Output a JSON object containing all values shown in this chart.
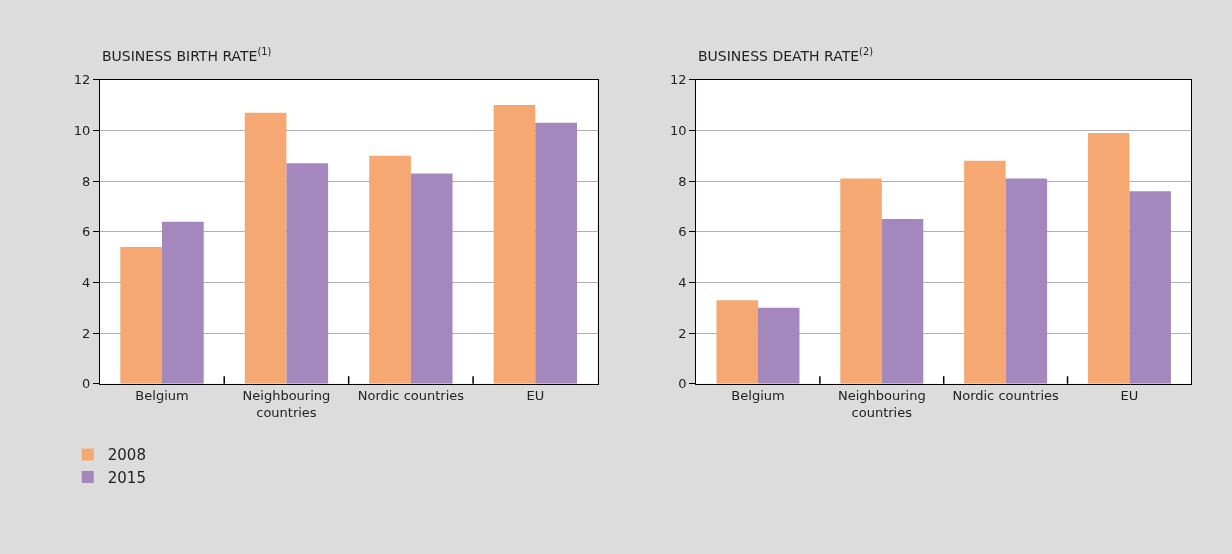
{
  "chart_data": [
    {
      "type": "bar",
      "title": "BUSINESS BIRTH RATE$^{(1)}$",
      "categories": [
        "Belgium",
        "Neighbouring\ncountries",
        "Nordic countries",
        "EU"
      ],
      "series": [
        {
          "name": "2008",
          "color": "#f5a872",
          "values": [
            5.4,
            10.7,
            9.0,
            11.0
          ]
        },
        {
          "name": "2015",
          "color": "#a387bd",
          "values": [
            6.4,
            8.7,
            8.3,
            10.3
          ]
        }
      ],
      "ylim": [
        0,
        12
      ],
      "yticks": [
        0,
        2,
        4,
        6,
        8,
        10,
        12
      ],
      "grid": "y",
      "legend": "bottom left"
    },
    {
      "type": "bar",
      "title": "BUSINESS DEATH RATE$^{(2)}$",
      "categories": [
        "Belgium",
        "Neighbouring\ncountries",
        "Nordic countries",
        "EU"
      ],
      "series": [
        {
          "color": "#f5a872",
          "values": [
            3.3,
            8.1,
            8.8,
            9.9
          ]
        },
        {
          "color": "#a387bd",
          "values": [
            3.0,
            6.5,
            8.1,
            7.6
          ]
        }
      ],
      "ylim": [
        0,
        12
      ],
      "yticks": [
        0,
        2,
        4,
        6,
        8,
        10,
        12
      ],
      "grid": "y"
    }
  ]
}
